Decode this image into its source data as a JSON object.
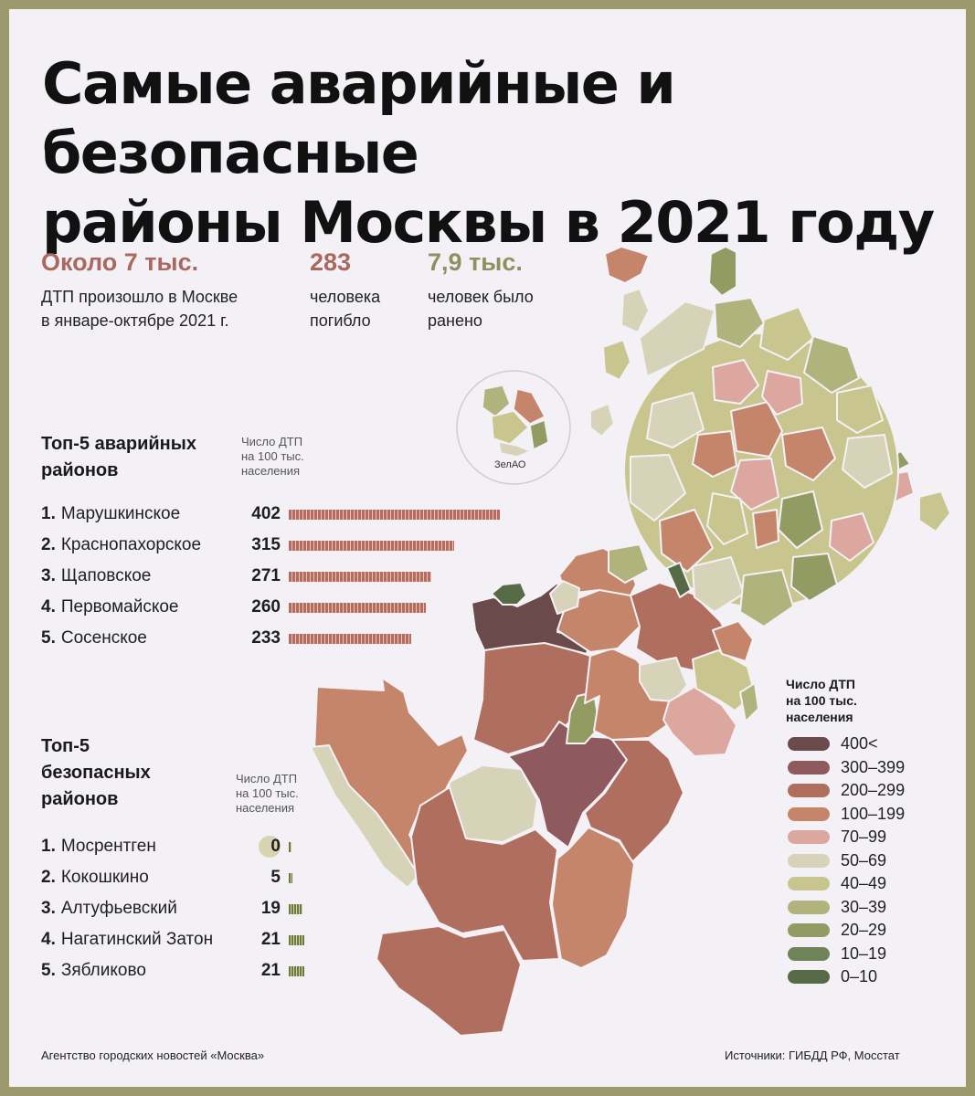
{
  "title": {
    "line1": "Самые аварийные и безопасные",
    "line2": "районы Москвы в 2021 году"
  },
  "stats": [
    {
      "value": "Около 7 тыс.",
      "line1": "ДТП произошло в Москве",
      "line2": "в январе-октябре 2021 г.",
      "color": "#a9695f"
    },
    {
      "value": "283",
      "line1": "человека",
      "line2": "погибло",
      "color": "#a9695f"
    },
    {
      "value": "7,9 тыс.",
      "line1": "человек было",
      "line2": "ранено",
      "color": "#8f9060"
    }
  ],
  "dangerous": {
    "title_line1": "Топ-5 аварийных",
    "title_line2": "районов",
    "unit_line1": "Число ДТП",
    "unit_line2": "на 100 тыс.",
    "unit_line3": "населения",
    "items": [
      {
        "rank": "1.",
        "name": "Марушкинское",
        "value": 402
      },
      {
        "rank": "2.",
        "name": "Краснопахорское",
        "value": 315
      },
      {
        "rank": "3.",
        "name": "Щаповское",
        "value": 271
      },
      {
        "rank": "4.",
        "name": "Первомайское",
        "value": 260
      },
      {
        "rank": "5.",
        "name": "Сосенское",
        "value": 233
      }
    ]
  },
  "safe": {
    "title_line1": "Топ-5",
    "title_line2": "безопасных",
    "title_line3": "районов",
    "unit_line1": "Число ДТП",
    "unit_line2": "на 100 тыс.",
    "unit_line3": "населения",
    "items": [
      {
        "rank": "1.",
        "name": "Мосрентген",
        "value": 0
      },
      {
        "rank": "2.",
        "name": "Кокошкино",
        "value": 5
      },
      {
        "rank": "3.",
        "name": "Алтуфьевский",
        "value": 19
      },
      {
        "rank": "4.",
        "name": "Нагатинский Затон",
        "value": 21
      },
      {
        "rank": "5.",
        "name": "Зябликово",
        "value": 21
      }
    ]
  },
  "inset_label": "ЗелАО",
  "legend": {
    "title_line1": "Число ДТП",
    "title_line2": "на 100 тыс.",
    "title_line3": "населения",
    "items": [
      {
        "label": "400<",
        "color": "#6b4a4c"
      },
      {
        "label": "300–399",
        "color": "#8f5a5e"
      },
      {
        "label": "200–299",
        "color": "#b06e5e"
      },
      {
        "label": "100–199",
        "color": "#c4856a"
      },
      {
        "label": "70–99",
        "color": "#dca79f"
      },
      {
        "label": "50–69",
        "color": "#d6d3b8"
      },
      {
        "label": "40–49",
        "color": "#c8c68e"
      },
      {
        "label": "30–39",
        "color": "#b1b37c"
      },
      {
        "label": "20–29",
        "color": "#919b62"
      },
      {
        "label": "10–19",
        "color": "#6e8458"
      },
      {
        "label": "0–10",
        "color": "#566b45"
      }
    ]
  },
  "footer": {
    "left": "Агентство городских новостей «Москва»",
    "right": "Источники: ГИБДД РФ, Мосстат"
  }
}
